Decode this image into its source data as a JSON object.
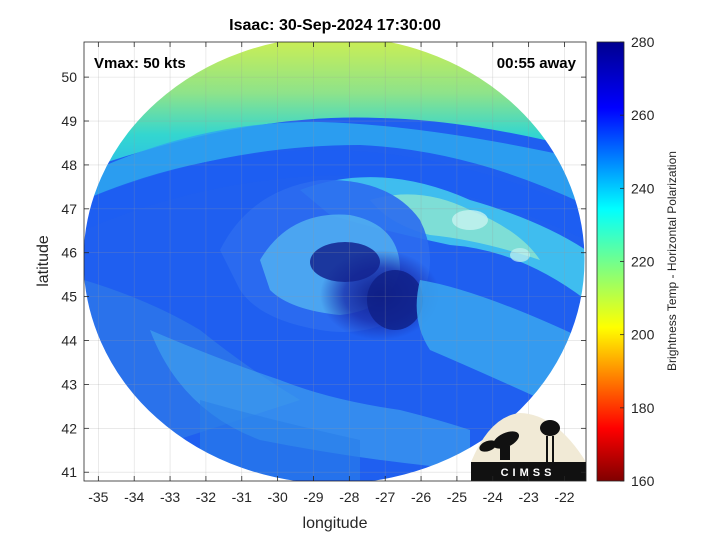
{
  "chart_data": {
    "type": "heatmap",
    "title": "Isaac: 30-Sep-2024 17:30:00",
    "xlabel": "longitude",
    "ylabel": "latitude",
    "xlim": [
      -35.4,
      -21.4
    ],
    "ylim": [
      40.8,
      50.8
    ],
    "x_ticks": [
      -35,
      -34,
      -33,
      -32,
      -31,
      -30,
      -29,
      -28,
      -27,
      -26,
      -25,
      -24,
      -23,
      -22
    ],
    "y_ticks": [
      41,
      42,
      43,
      44,
      45,
      46,
      47,
      48,
      49,
      50
    ],
    "grid": true,
    "colorbar": {
      "label": "Brightness Temp - Horizontal Polarization",
      "range": [
        160,
        280
      ],
      "ticks": [
        160,
        180,
        200,
        220,
        240,
        260,
        280
      ],
      "colormap": "jet"
    },
    "storm_center": {
      "lon": -27.8,
      "lat": 45.2
    },
    "annotations": {
      "vmax": "Vmax: 50 kts",
      "time_away": "00:55 away"
    }
  },
  "logo": {
    "text": "CIMSS"
  }
}
